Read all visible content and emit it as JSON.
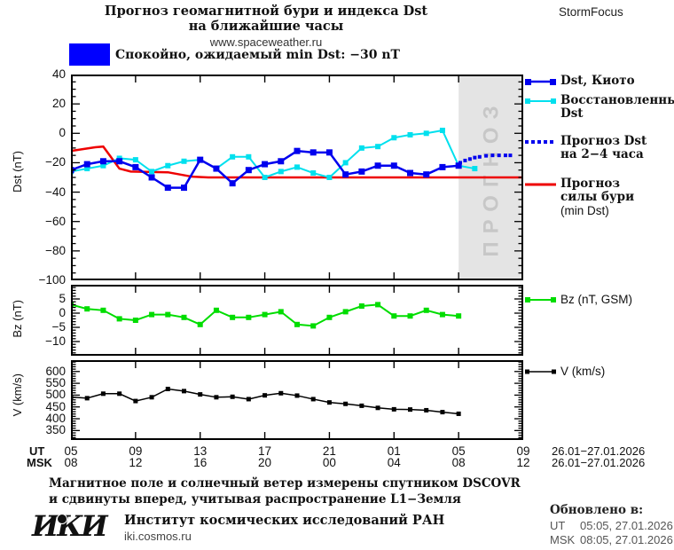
{
  "header": {
    "title_line1": "Прогноз геомагнитной бури и индекса Dst",
    "title_line2": "на ближайшие часы",
    "website": "www.spaceweather.ru",
    "brand": "StormFocus",
    "alert_text": "Спокойно, ожидаемый min Dst: −30 nT",
    "alert_color": "#0000ff"
  },
  "legend": {
    "dst": [
      {
        "lines": [
          "Dst, Киото"
        ]
      },
      {
        "lines": [
          "Восстановленный",
          "Dst"
        ]
      },
      {
        "lines": [
          "Прогноз Dst",
          "на 2−4 часа"
        ]
      },
      {
        "lines": [
          "Прогноз",
          "силы бури",
          "(min Dst)"
        ]
      }
    ],
    "bz": "Bz (nT, GSM)",
    "v": "V (km/s)"
  },
  "axes": {
    "ut_label": "UT",
    "msk_label": "MSK",
    "tick_hours": [
      5,
      9,
      13,
      17,
      21,
      25,
      29,
      33
    ],
    "ut_ticks": [
      "05",
      "09",
      "13",
      "17",
      "21",
      "01",
      "05",
      "09"
    ],
    "msk_ticks": [
      "08",
      "12",
      "16",
      "20",
      "00",
      "04",
      "08",
      "12"
    ],
    "date_range": "26.01−27.01.2026"
  },
  "footer": {
    "note_line1": "Магнитное поле и солнечный ветер измерены спутником DSCOVR",
    "note_line2": "и сдвинуты вперед, учитывая распространение L1−Земля",
    "logo": "ИКИ",
    "institute": "Институт космических исследований РАН",
    "site": "iki.cosmos.ru",
    "updated_label": "Обновлено в:",
    "updated_ut_label": "UT",
    "updated_ut": "05:05, 27.01.2026",
    "updated_msk_label": "MSK",
    "updated_msk": "08:05, 27.01.2026"
  },
  "chart_data": [
    {
      "type": "line",
      "ylabel": "Dst (nT)",
      "ylim": [
        -100,
        40
      ],
      "yticks": [
        40,
        20,
        0,
        -20,
        -40,
        -60,
        -80,
        -100
      ],
      "yminor": 5,
      "xlim": [
        5,
        33
      ],
      "xticks": [
        5,
        9,
        13,
        17,
        21,
        25,
        29,
        33
      ],
      "x_unit": "hour UT, 26.01−27.01.2026",
      "forecast_band_x": [
        29,
        33
      ],
      "forecast_band_label": "ПРОГНОЗ",
      "series": [
        {
          "name": "Прогноз силы бури (min Dst)",
          "color": "#ee0000",
          "width": 2.5,
          "x": [
            5,
            6.5,
            7,
            8,
            8.7,
            11,
            12.5,
            13.5,
            33
          ],
          "values": [
            -12,
            -9.5,
            -9,
            -24,
            -26,
            -26.5,
            -29.5,
            -30,
            -30
          ]
        },
        {
          "name": "Восстановленный Dst",
          "color": "#00e0ee",
          "marker": "square",
          "marker_size": 6,
          "width": 2,
          "x": [
            5,
            6,
            7,
            8,
            9,
            10,
            11,
            12,
            13,
            14,
            15,
            16,
            17,
            18,
            19,
            20,
            21,
            22,
            23,
            24,
            25,
            26,
            27,
            28,
            29,
            30
          ],
          "values": [
            -26,
            -24,
            -22,
            -17,
            -18,
            -26,
            -22,
            -19,
            -18,
            -24,
            -16,
            -16,
            -30,
            -26,
            -23,
            -27,
            -30,
            -20,
            -10,
            -9,
            -3,
            -1,
            0,
            2,
            -22,
            -24
          ]
        },
        {
          "name": "Dst, Киото",
          "color": "#0000ee",
          "marker": "square",
          "marker_size": 7,
          "width": 2.5,
          "x": [
            5,
            6,
            7,
            8,
            9,
            10,
            11,
            12,
            13,
            14,
            15,
            16,
            17,
            18,
            19,
            20,
            21,
            22,
            23,
            24,
            25,
            26,
            27,
            28,
            29
          ],
          "values": [
            -25,
            -21,
            -19,
            -19,
            -23,
            -30,
            -37,
            -37,
            -18,
            -24,
            -34,
            -25,
            -21,
            -19,
            -12,
            -13,
            -13,
            -28,
            -26,
            -22,
            -22,
            -27,
            -28,
            -23,
            -22
          ]
        },
        {
          "name": "Прогноз Dst на 2−4 часа",
          "color": "#0000ee",
          "style": "dots",
          "marker_size": 4,
          "x": [
            29.1,
            29.4,
            29.7,
            30,
            30.3,
            30.7,
            31.1,
            31.5,
            31.9,
            32.2
          ],
          "values": [
            -20,
            -18.5,
            -17.5,
            -16.5,
            -16,
            -15.3,
            -15,
            -15,
            -15,
            -15
          ]
        }
      ]
    },
    {
      "type": "line",
      "ylabel": "Bz (nT)",
      "ylim": [
        -15,
        10
      ],
      "yticks": [
        5,
        0,
        -5,
        -10
      ],
      "yminor": 1,
      "xlim": [
        5,
        33
      ],
      "xticks": [
        5,
        9,
        13,
        17,
        21,
        25,
        29,
        33
      ],
      "series": [
        {
          "name": "Bz (nT, GSM)",
          "color": "#00dd00",
          "marker": "square",
          "marker_size": 6,
          "width": 2,
          "x": [
            5,
            6,
            7,
            8,
            9,
            10,
            11,
            12,
            13,
            14,
            15,
            16,
            17,
            18,
            19,
            20,
            21,
            22,
            23,
            24,
            25,
            26,
            27,
            28,
            29
          ],
          "values": [
            3,
            1.5,
            1,
            -2,
            -2.5,
            -0.5,
            -0.5,
            -1.5,
            -4,
            1,
            -1.5,
            -1.5,
            -0.5,
            0.5,
            -4,
            -4.5,
            -1.5,
            0.5,
            2.5,
            3,
            -1,
            -1,
            1,
            -0.5,
            -1
          ]
        }
      ]
    },
    {
      "type": "line",
      "ylabel": "V (km/s)",
      "ylim": [
        310,
        648
      ],
      "yticks": [
        600,
        550,
        500,
        450,
        400,
        350
      ],
      "yminor": 10,
      "xlim": [
        5,
        33
      ],
      "xticks": [
        5,
        9,
        13,
        17,
        21,
        25,
        29,
        33
      ],
      "series": [
        {
          "name": "V (km/s)",
          "color": "#000000",
          "marker": "square",
          "marker_size": 5,
          "width": 1.5,
          "x": [
            5,
            6,
            7,
            8,
            9,
            10,
            11,
            12,
            13,
            14,
            15,
            16,
            17,
            18,
            19,
            20,
            21,
            22,
            23,
            24,
            25,
            26,
            27,
            28,
            29
          ],
          "values": [
            492,
            487,
            506,
            506,
            475,
            491,
            526,
            517,
            503,
            491,
            493,
            483,
            499,
            508,
            498,
            483,
            469,
            463,
            455,
            446,
            440,
            439,
            436,
            428,
            421
          ]
        }
      ]
    }
  ]
}
